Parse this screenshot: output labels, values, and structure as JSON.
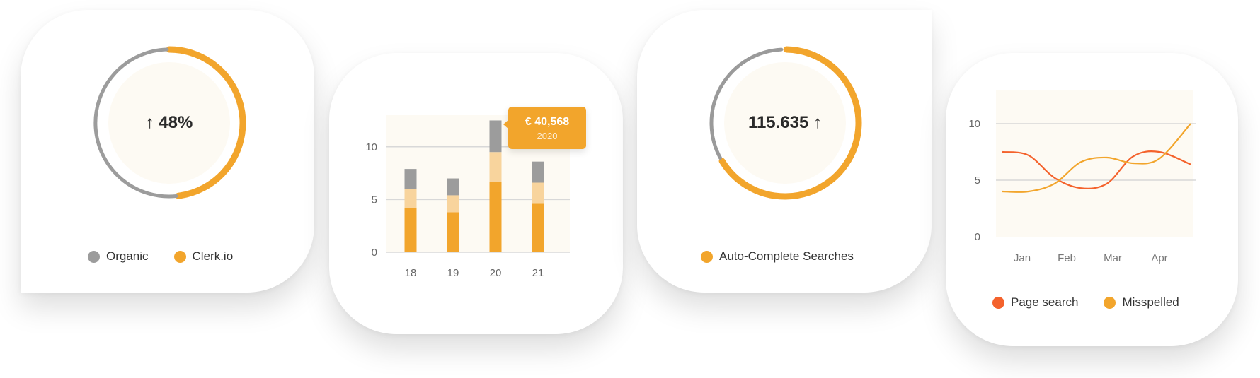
{
  "colors": {
    "orange": "#f2a52c",
    "light_orange": "#f8d49d",
    "gray": "#9c9c9c",
    "red": "#f4622c",
    "panel": "#fdfaf3",
    "grid": "#d8d8d8",
    "track_gray": "#9a9a9a"
  },
  "card1": {
    "center_text": "↑ 48%",
    "legend": [
      {
        "label": "Organic",
        "color": "#9c9c9c"
      },
      {
        "label": "Clerk.io",
        "color": "#f2a52c"
      }
    ]
  },
  "card2": {
    "tooltip": {
      "value": "€ 40,568",
      "year": "2020"
    }
  },
  "card3": {
    "center_text": "115.635 ↑",
    "legend": [
      {
        "label": "Auto-Complete Searches",
        "color": "#f2a52c"
      }
    ]
  },
  "card4": {
    "legend": [
      {
        "label": "Page search",
        "color": "#f4622c"
      },
      {
        "label": "Misspelled",
        "color": "#f2a52c"
      }
    ]
  },
  "chart_data": [
    {
      "type": "pie",
      "chart_id": "card1",
      "center_text": "↑ 48%",
      "series": [
        {
          "name": "Organic",
          "value": 52,
          "color": "#9c9c9c"
        },
        {
          "name": "Clerk.io",
          "value": 48,
          "color": "#f2a52c"
        }
      ]
    },
    {
      "type": "bar",
      "chart_id": "card2",
      "stacked": true,
      "categories": [
        "18",
        "19",
        "20",
        "21"
      ],
      "yticks": [
        "0",
        "5",
        "10"
      ],
      "ylim": [
        0,
        13
      ],
      "series": [
        {
          "values": [
            4.2,
            3.8,
            6.7,
            4.6
          ],
          "color": "#f2a52c"
        },
        {
          "values": [
            1.8,
            1.6,
            2.8,
            2.0
          ],
          "color": "#f8d49d"
        },
        {
          "values": [
            1.9,
            1.6,
            3.0,
            2.0
          ],
          "color": "#9c9c9c"
        }
      ],
      "grid": true
    },
    {
      "type": "pie",
      "chart_id": "card3",
      "center_text": "115.635 ↑",
      "series": [
        {
          "name": "Auto-Complete Searches",
          "value": 66,
          "color": "#f2a52c"
        },
        {
          "value": 34,
          "color": "#9a9a9a"
        }
      ]
    },
    {
      "type": "line",
      "chart_id": "card4",
      "categories": [
        "Jan",
        "Feb",
        "Mar",
        "Apr"
      ],
      "yticks": [
        "0",
        "5",
        "10"
      ],
      "ylim": [
        0,
        13
      ],
      "x": [
        0.0,
        0.5,
        1.0,
        1.5,
        2.0,
        2.5,
        3.0,
        3.6
      ],
      "series": [
        {
          "name": "Page search",
          "color": "#f4622c",
          "values": [
            7.5,
            7.2,
            5.2,
            4.3,
            4.7,
            7.1,
            7.5,
            6.4
          ]
        },
        {
          "name": "Misspelled",
          "color": "#f2a52c",
          "values": [
            4.0,
            4.0,
            4.7,
            6.6,
            7.0,
            6.5,
            6.9,
            10.0
          ]
        }
      ],
      "grid": true
    }
  ]
}
